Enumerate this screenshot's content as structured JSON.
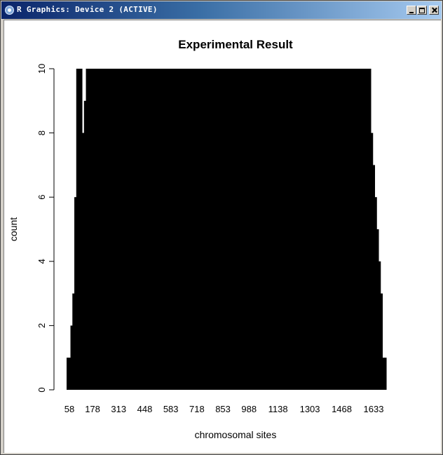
{
  "window": {
    "title": "R Graphics: Device 2 (ACTIVE)",
    "buttons": {
      "minimize": "minimize",
      "maximize": "maximize",
      "close": "close"
    }
  },
  "chart_data": {
    "type": "bar",
    "title": "Experimental Result",
    "xlabel": "chromosomal sites",
    "ylabel": "count",
    "ylim": [
      0,
      10
    ],
    "yticks": [
      0,
      2,
      4,
      6,
      8,
      10
    ],
    "x_tick_labels": [
      "58",
      "178",
      "313",
      "448",
      "583",
      "718",
      "853",
      "988",
      "1138",
      "1303",
      "1468",
      "1633"
    ],
    "bar_color": "#000000",
    "background": "#ffffff",
    "x": [
      58,
      68,
      78,
      88,
      98,
      108,
      118,
      128,
      138,
      148,
      158,
      168,
      178,
      188,
      1633,
      1643,
      1653,
      1663,
      1673,
      1683,
      1693,
      1703
    ],
    "values": [
      1,
      1,
      2,
      3,
      6,
      10,
      10,
      10,
      8,
      9,
      10,
      10,
      10,
      10,
      8,
      7,
      6,
      5,
      4,
      3,
      1,
      1
    ],
    "notes_fill": "all sites between 188 and 1633 have count >= 10 (clipped at top)"
  }
}
